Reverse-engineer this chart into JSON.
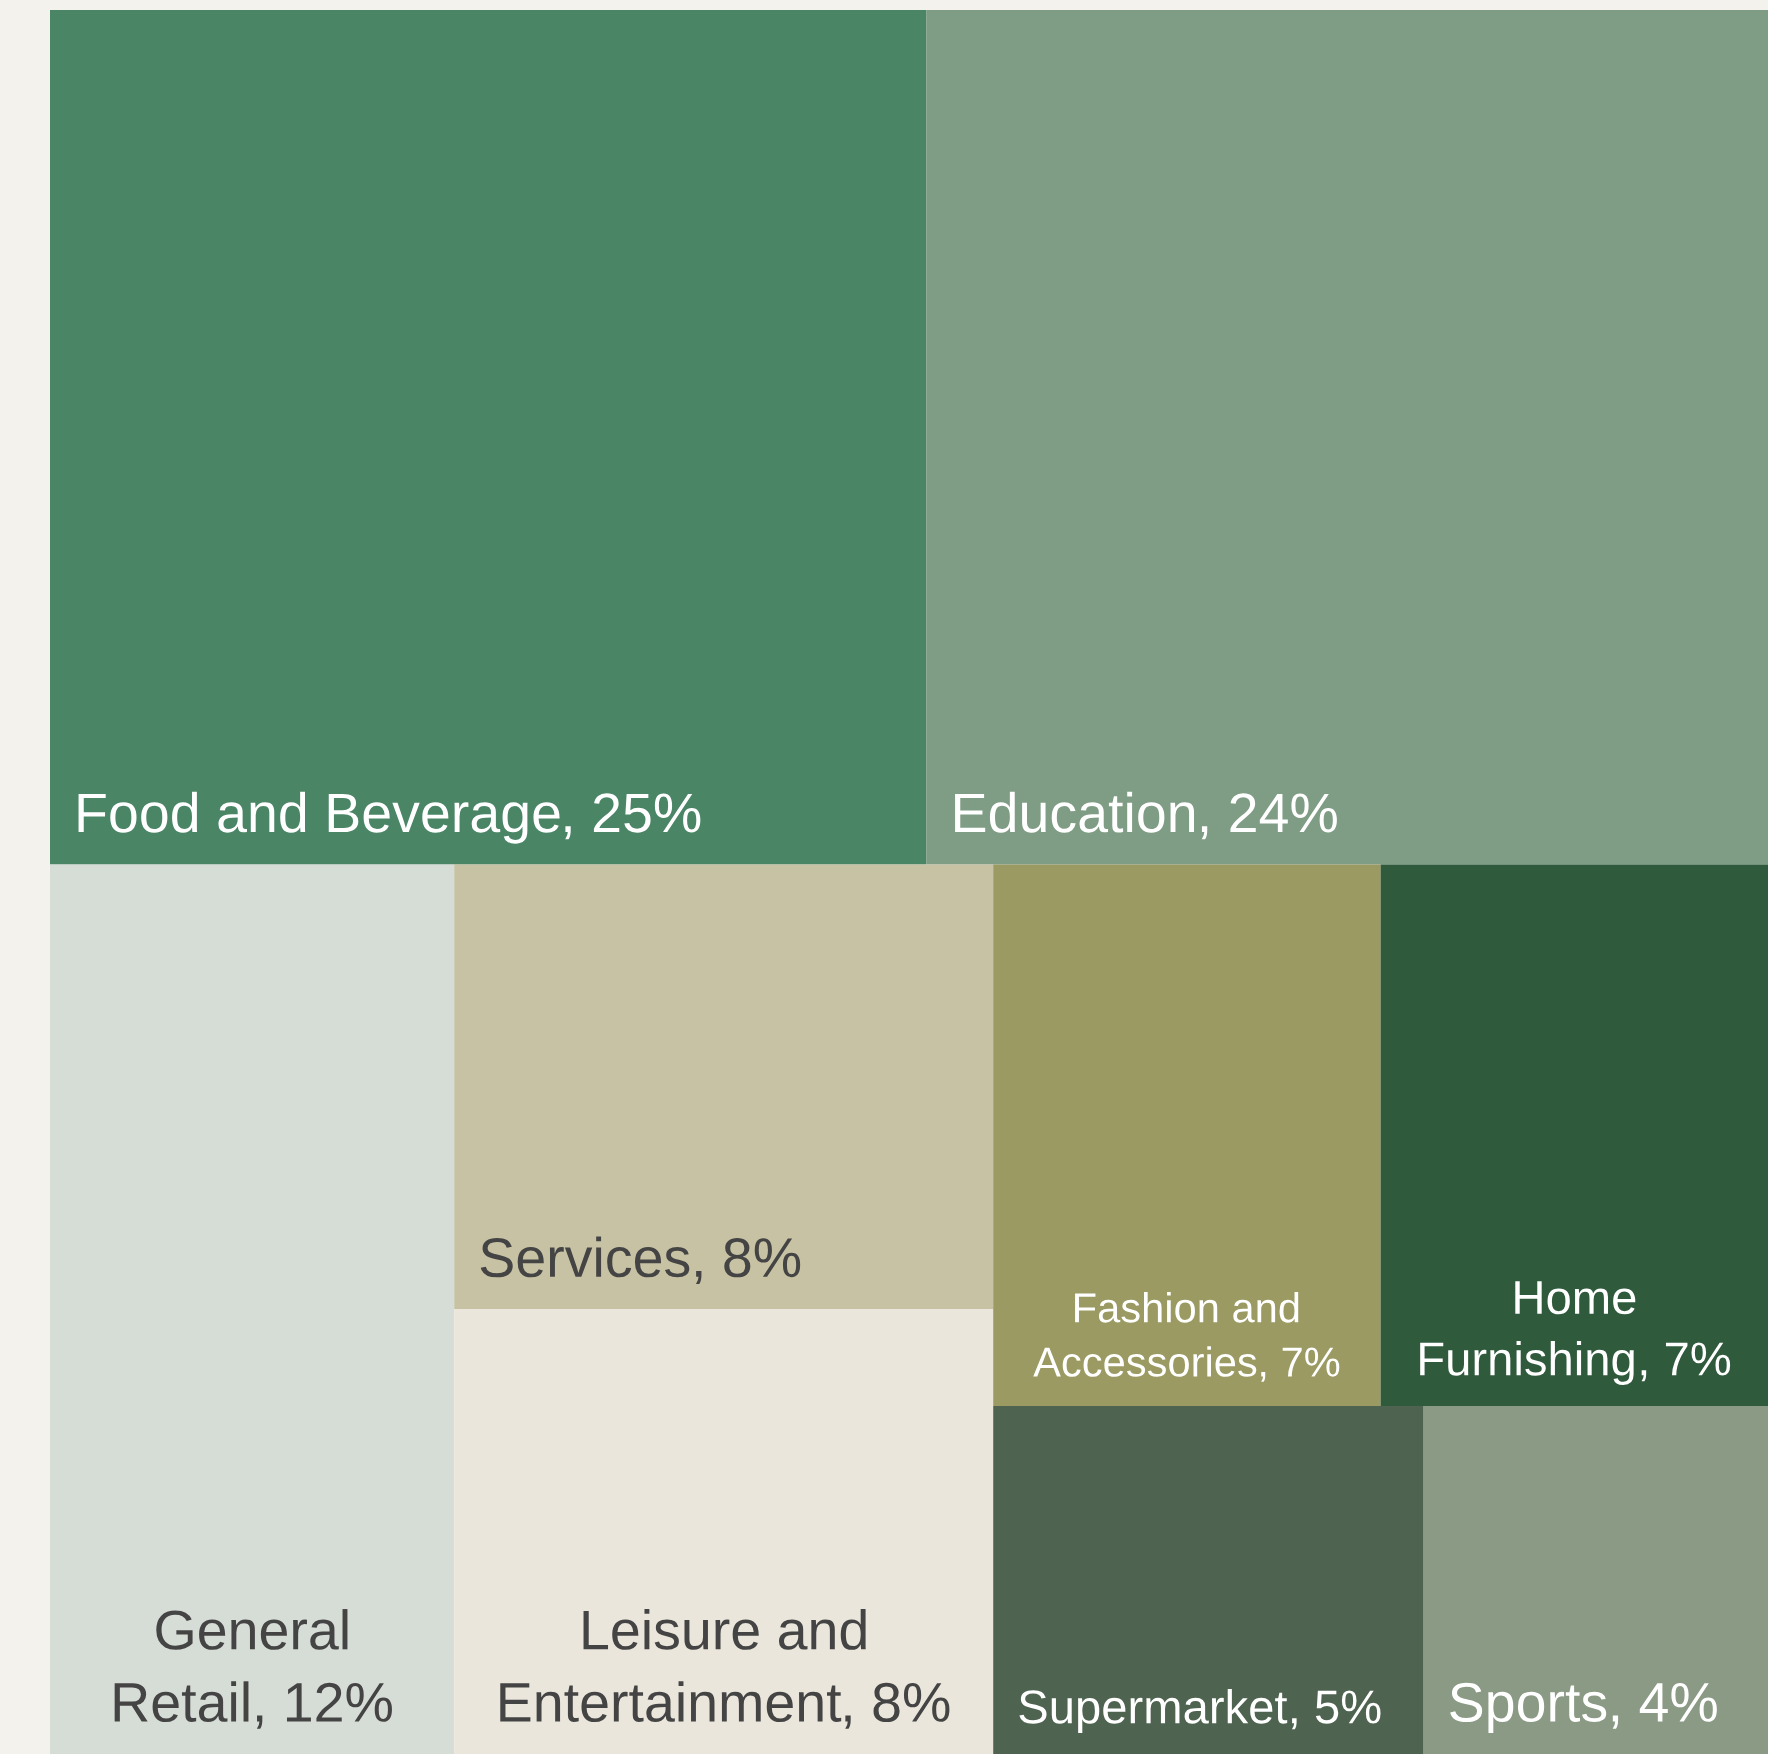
{
  "chart_data": {
    "type": "other",
    "categories": [
      "Food and Beverage",
      "Education",
      "General Retail",
      "Services",
      "Leisure and Entertainment",
      "Fashion and Accessories",
      "Home Furnishing",
      "Supermarket",
      "Sports"
    ],
    "values": [
      25,
      24,
      12,
      8,
      8,
      7,
      7,
      5,
      4
    ],
    "value_labels": [
      ", 25%",
      ", 24%",
      ", 12%",
      ", 8%",
      ", 8%",
      ", 7%",
      ", 7%",
      ", 5%",
      ", 4%"
    ],
    "colors": [
      "#4a8566",
      "#7f9c84",
      "#d6dcd6",
      "#c8c2a4",
      "#ebe6dc",
      "#9a9a62",
      "#2f5a3c",
      "#4f6450",
      "#8a9a84"
    ]
  }
}
